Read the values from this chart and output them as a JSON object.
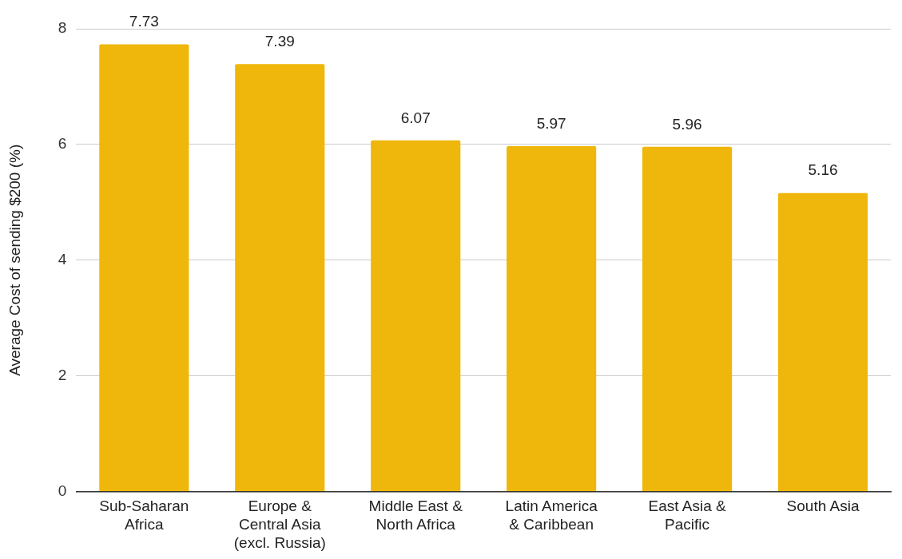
{
  "chart_data": {
    "type": "bar",
    "ylabel": "Average Cost of sending $200 (%)",
    "categories": [
      "Sub-Saharan Africa",
      "Europe & Central Asia (excl. Russia)",
      "Middle East & North Africa",
      "Latin America & Caribbean",
      "East Asia & Pacific",
      "South Asia"
    ],
    "values": [
      7.73,
      7.39,
      6.07,
      5.97,
      5.96,
      5.16
    ],
    "color": "#efb70b",
    "ylim": [
      0,
      8
    ],
    "yticks": [
      0,
      2,
      4,
      6,
      8
    ],
    "grid": "y",
    "data_labels": true
  }
}
